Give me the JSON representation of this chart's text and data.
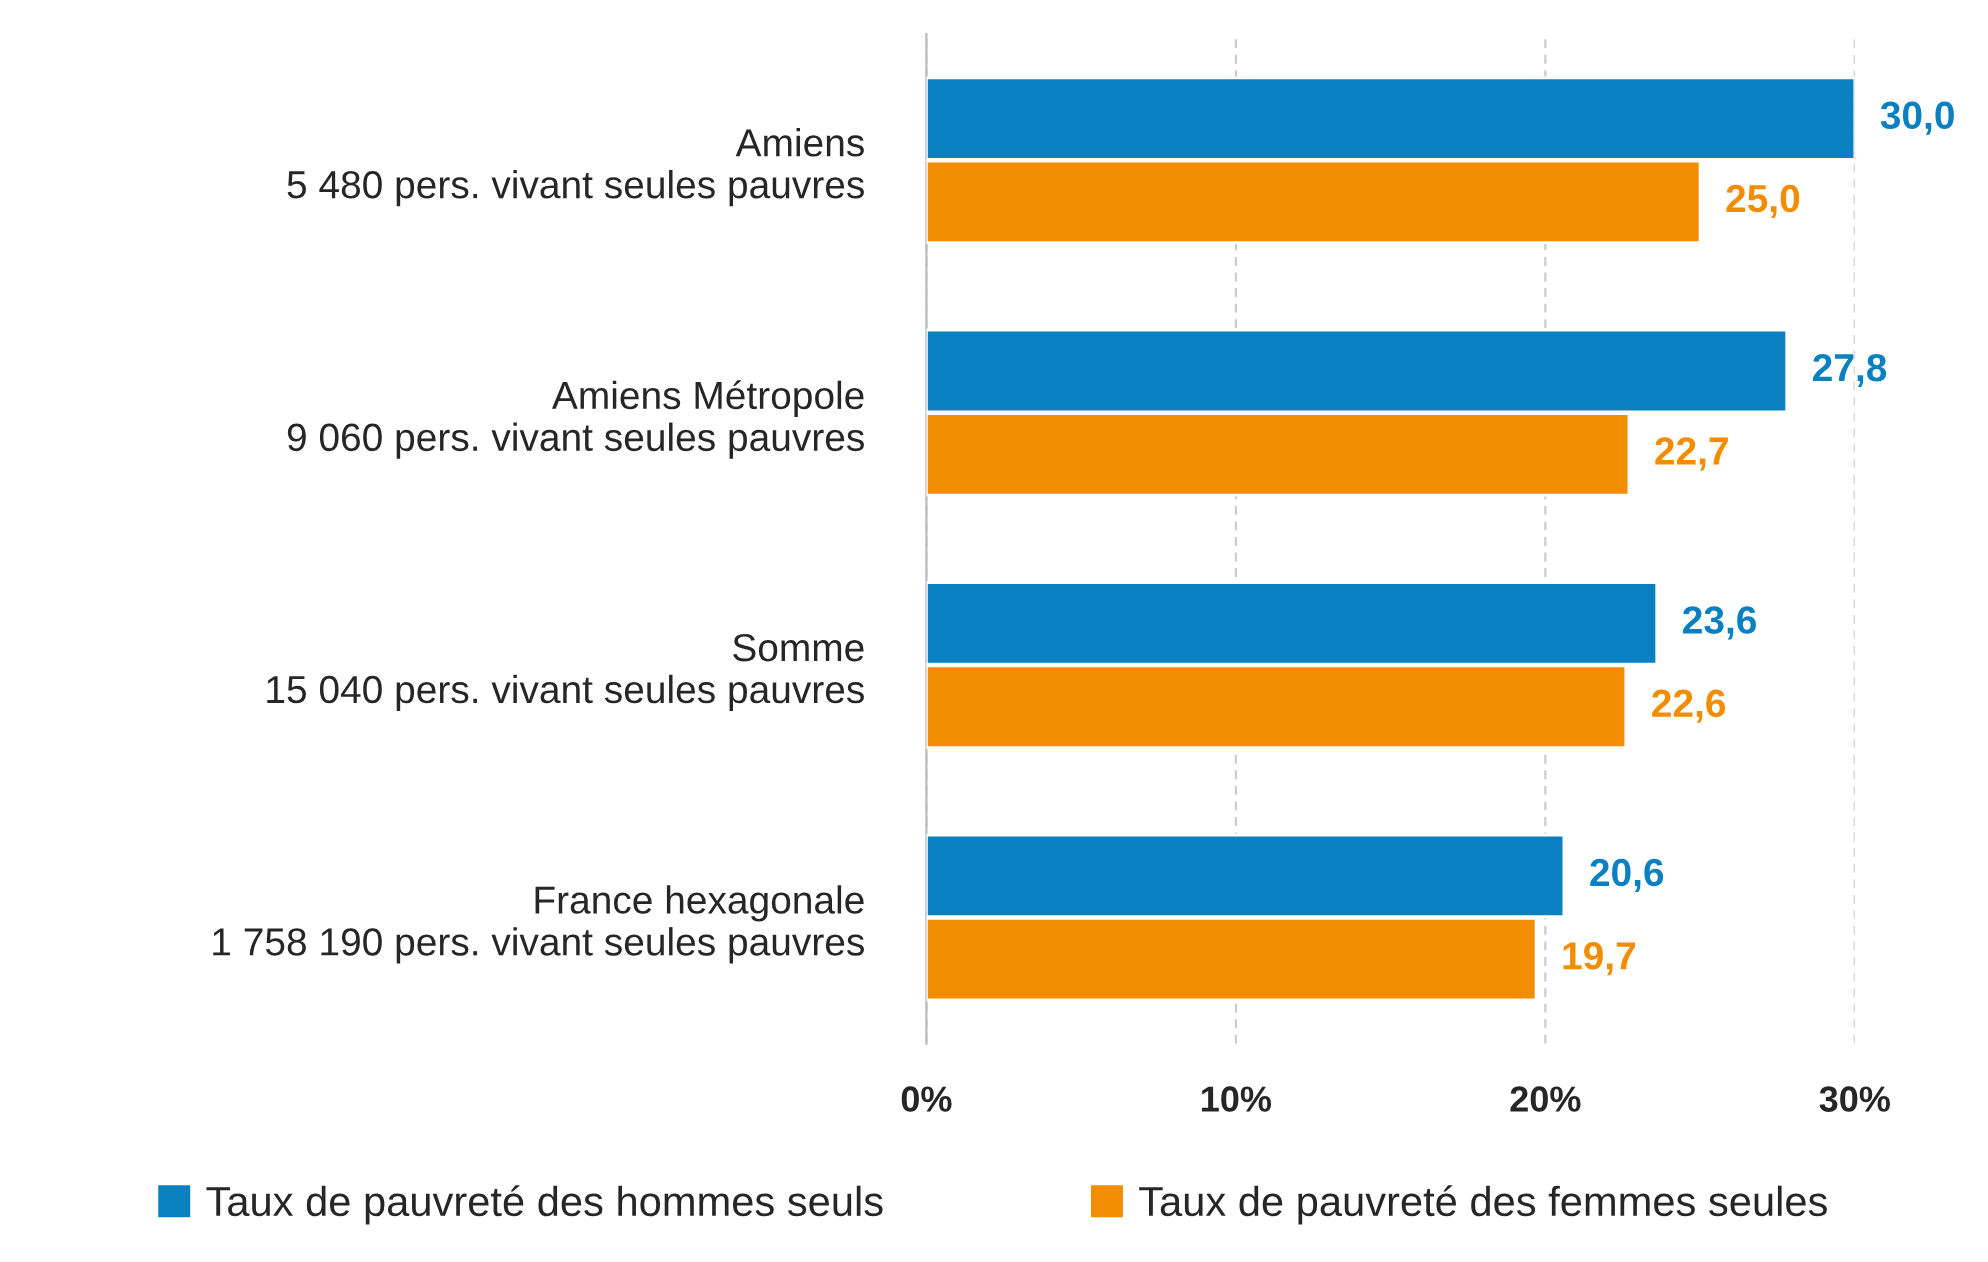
{
  "chart_data": {
    "type": "bar",
    "orientation": "horizontal",
    "categories": [
      "Amiens\n5 480 pers. vivant seules pauvres",
      "Amiens Métropole\n9 060 pers. vivant seules pauvres",
      "Somme\n15 040 pers. vivant seules pauvres",
      "France hexagonale\n1 758 190 pers. vivant seules pauvres"
    ],
    "series": [
      {
        "name": "Taux de pauvreté des hommes seuls",
        "color": "#0b80c0",
        "values": [
          30.0,
          27.8,
          23.6,
          20.6
        ],
        "value_labels": [
          "30,0",
          "27,8",
          "23,6",
          "20,6"
        ]
      },
      {
        "name": "Taux de pauvreté des femmes seules",
        "color": "#f28c00",
        "values": [
          25.0,
          22.7,
          22.6,
          19.7
        ],
        "value_labels": [
          "25,0",
          "22,7",
          "22,6",
          "19,7"
        ]
      }
    ],
    "xlim": [
      0,
      30
    ],
    "xticks": [
      {
        "value": 0,
        "label": "0%"
      },
      {
        "value": 10,
        "label": "10%"
      },
      {
        "value": 20,
        "label": "20%"
      },
      {
        "value": 30,
        "label": "30%"
      }
    ],
    "grid": "x",
    "legend": "bottom"
  }
}
